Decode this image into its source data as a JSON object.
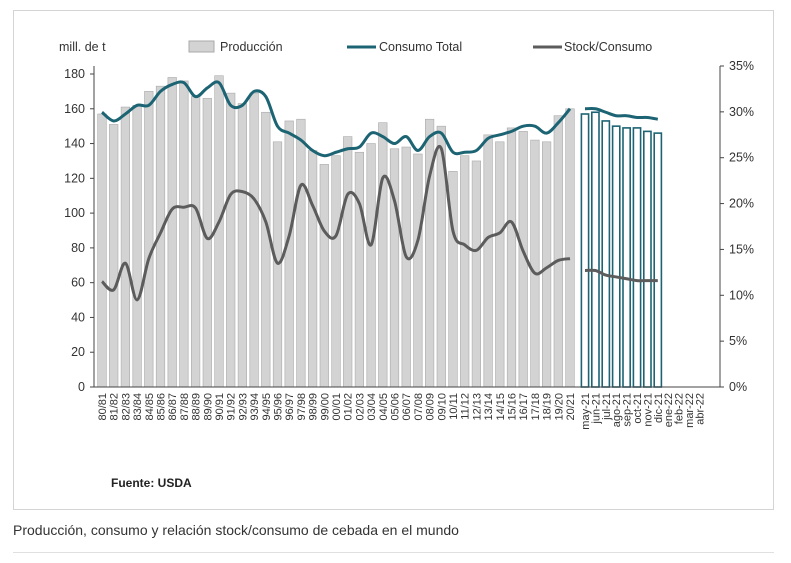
{
  "caption": "Producción, consumo y relación stock/consumo de cebada en el mundo",
  "chart_data": {
    "type": "bar",
    "unit_label": "mill. de t",
    "source": "Fuente: USDA",
    "y_ticks": [
      "0",
      "20",
      "40",
      "60",
      "80",
      "100",
      "120",
      "140",
      "160",
      "180"
    ],
    "y2_ticks": [
      "0%",
      "5%",
      "10%",
      "15%",
      "20%",
      "25%",
      "30%",
      "35%"
    ],
    "ylim": [
      0,
      185
    ],
    "y2lim": [
      0,
      0.35
    ],
    "legend": [
      "Producción",
      "Consumo Total",
      "Stock/Consumo"
    ],
    "colors": {
      "production_fill": "#d3d3d3",
      "production_stroke": "#aaaaaa",
      "consumption": "#1c6473",
      "ratio": "#5c5c5c",
      "monthly_bar": "#1c6473"
    },
    "categories": [
      "80/81",
      "81/82",
      "82/83",
      "83/84",
      "84/85",
      "85/86",
      "86/87",
      "87/88",
      "88/89",
      "89/90",
      "90/91",
      "91/92",
      "92/93",
      "93/94",
      "94/95",
      "95/96",
      "96/97",
      "97/98",
      "98/99",
      "99/00",
      "00/01",
      "01/02",
      "02/03",
      "03/04",
      "04/05",
      "05/06",
      "06/07",
      "07/08",
      "08/09",
      "09/10",
      "10/11",
      "11/12",
      "12/13",
      "13/14",
      "14/15",
      "15/16",
      "16/17",
      "17/18",
      "18/19",
      "19/20",
      "20/21"
    ],
    "series": [
      {
        "name": "Producción",
        "values": [
          157,
          151,
          161,
          162,
          170,
          173,
          178,
          176,
          167,
          166,
          179,
          169,
          163,
          169,
          158,
          141,
          153,
          154,
          136,
          128,
          133,
          144,
          135,
          140,
          152,
          137,
          138,
          134,
          154,
          150,
          124,
          133,
          130,
          145,
          141,
          149,
          147,
          142,
          141,
          156,
          160
        ]
      },
      {
        "name": "Consumo Total",
        "values": [
          158,
          153,
          157,
          162,
          162,
          170,
          174,
          175,
          167,
          172,
          175,
          162,
          162,
          170,
          167,
          150,
          146,
          142,
          136,
          133,
          135,
          137,
          138,
          146,
          144,
          140,
          144,
          136,
          144,
          146,
          135,
          135,
          136,
          143,
          145,
          147,
          150,
          150,
          146,
          152,
          160
        ]
      },
      {
        "name": "Stock/Consumo",
        "values": [
          0.115,
          0.106,
          0.135,
          0.095,
          0.14,
          0.168,
          0.194,
          0.196,
          0.195,
          0.162,
          0.18,
          0.21,
          0.213,
          0.205,
          0.18,
          0.135,
          0.165,
          0.22,
          0.198,
          0.17,
          0.165,
          0.21,
          0.2,
          0.155,
          0.228,
          0.203,
          0.142,
          0.16,
          0.23,
          0.26,
          0.17,
          0.155,
          0.149,
          0.163,
          0.168,
          0.18,
          0.148,
          0.124,
          0.13,
          0.138,
          0.14
        ]
      }
    ],
    "monthly": {
      "categories": [
        "may-21",
        "jun-21",
        "jul-21",
        "ago-21",
        "sep-21",
        "oct-21",
        "nov-21",
        "dic-21",
        "ene-22",
        "feb-22",
        "mar-22",
        "abr-22"
      ],
      "production": [
        157,
        158,
        153,
        150,
        149,
        149,
        147,
        146
      ],
      "consumption": [
        160,
        160,
        158,
        156,
        156,
        155,
        155,
        154
      ],
      "ratio": [
        0.127,
        0.127,
        0.122,
        0.12,
        0.118,
        0.116,
        0.116,
        0.116
      ]
    }
  }
}
